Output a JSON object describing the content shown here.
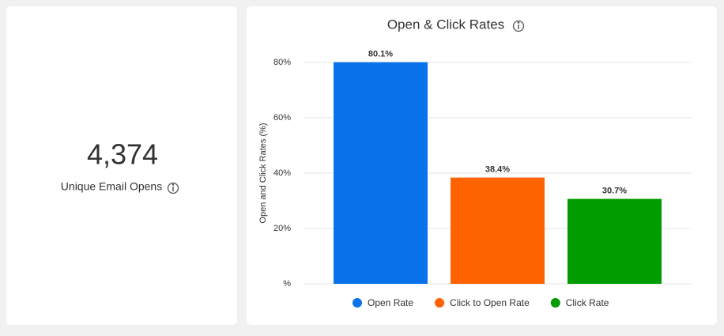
{
  "kpi": {
    "value": "4,374",
    "label": "Unique Email Opens"
  },
  "chart_data": {
    "type": "bar",
    "title": "Open & Click Rates",
    "y_label": "Open and Click Rates (%)",
    "categories": [
      "Open Rate",
      "Click to Open Rate",
      "Click Rate"
    ],
    "values": [
      80.1,
      38.4,
      30.7
    ],
    "value_labels": [
      "80.1%",
      "38.4%",
      "30.7%"
    ],
    "colors": [
      "#0a73eb",
      "#ff6200",
      "#009c00"
    ],
    "ylim": [
      0,
      80
    ],
    "yticks": [
      {
        "value": 0,
        "label": "%"
      },
      {
        "value": 20,
        "label": "20%"
      },
      {
        "value": 40,
        "label": "40%"
      },
      {
        "value": 60,
        "label": "60%"
      },
      {
        "value": 80,
        "label": "80%"
      }
    ],
    "grid": true
  }
}
